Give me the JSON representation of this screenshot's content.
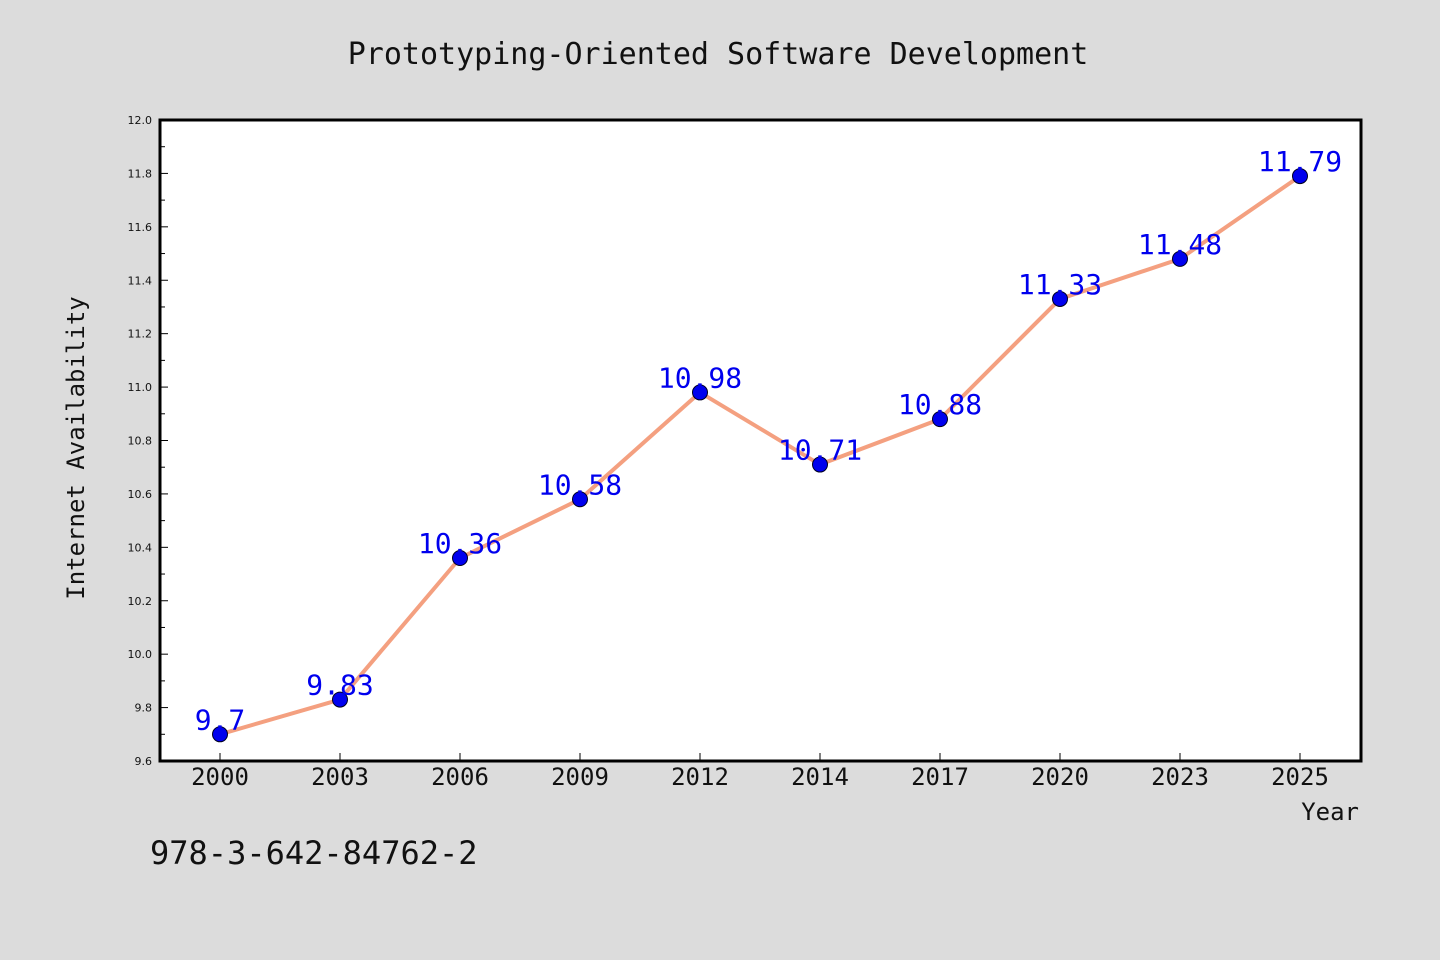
{
  "chart_data": {
    "type": "line",
    "title": "Prototyping-Oriented Software Development",
    "xlabel": "Year",
    "ylabel": "Internet Availability",
    "categories": [
      "2000",
      "2003",
      "2006",
      "2009",
      "2012",
      "2014",
      "2017",
      "2020",
      "2023",
      "2025"
    ],
    "series": [
      {
        "values": [
          9.7,
          9.83,
          10.36,
          10.58,
          10.98,
          10.71,
          10.88,
          11.33,
          11.48,
          11.79
        ],
        "data_labels": [
          "9.7",
          "9.83",
          "10.36",
          "10.58",
          "10.98",
          "10.71",
          "10.88",
          "11.33",
          "11.48",
          "11.79"
        ],
        "line_color": "#f4a080",
        "marker_color": "#0000ee"
      }
    ],
    "ylim": [
      9.6,
      12.0
    ],
    "y_ticks": [
      "9.6",
      "9.8",
      "10.0",
      "10.2",
      "10.4",
      "10.6",
      "10.8",
      "11.0",
      "11.2",
      "11.4",
      "11.6",
      "11.8",
      "12.0"
    ],
    "grid": false,
    "legend": "none"
  },
  "footer_text": "978-3-642-84762-2",
  "colors": {
    "background": "#dcdcdc",
    "plot_background": "#ffffff",
    "label_color": "#0000ee"
  }
}
